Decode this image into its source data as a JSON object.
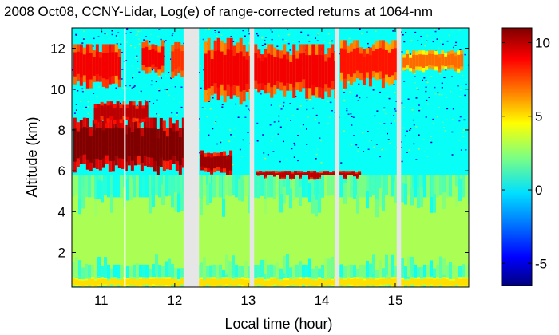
{
  "chart_data": {
    "type": "heatmap",
    "title": "2008 Oct08, CCNY-Lidar, Log(e) of range-corrected returns at 1064-nm",
    "xlabel": "Local time (hour)",
    "ylabel": "Altitude (km)",
    "xlim": [
      10.6,
      16.0
    ],
    "ylim": [
      0.3,
      13.0
    ],
    "x_ticks": [
      11,
      12,
      13,
      14,
      15
    ],
    "x_tick_labels": [
      "11",
      "12",
      "13",
      "14",
      "15"
    ],
    "y_ticks": [
      2,
      4,
      6,
      8,
      10,
      12
    ],
    "y_tick_labels": [
      "2",
      "4",
      "6",
      "8",
      "10",
      "12"
    ],
    "colorbar": {
      "range": [
        -6.5,
        11
      ],
      "ticks": [
        -5,
        0,
        5,
        10
      ],
      "tick_labels": [
        "-5",
        "0",
        "5",
        "10"
      ],
      "colormap": "jet"
    },
    "data_gaps_hours": [
      [
        12.12,
        12.33
      ],
      [
        13.02,
        13.08
      ],
      [
        14.18,
        14.24
      ],
      [
        15.02,
        15.08
      ]
    ],
    "features": [
      {
        "kind": "cirrus",
        "x": [
          10.62,
          11.25
        ],
        "y": [
          10.2,
          12.2
        ],
        "value": 7.5
      },
      {
        "kind": "cirrus",
        "x": [
          11.55,
          11.85
        ],
        "y": [
          10.8,
          12.4
        ],
        "value": 7.5
      },
      {
        "kind": "cirrus",
        "x": [
          11.95,
          12.12
        ],
        "y": [
          10.6,
          12.3
        ],
        "value": 6.5
      },
      {
        "kind": "thick-cloud",
        "x": [
          10.62,
          12.12
        ],
        "y": [
          6.1,
          8.6
        ],
        "value": 9.5
      },
      {
        "kind": "cloud-top",
        "x": [
          10.9,
          11.6
        ],
        "y": [
          8.4,
          9.4
        ],
        "value": 8.5
      },
      {
        "kind": "cirrus",
        "x": [
          12.4,
          13.02
        ],
        "y": [
          9.5,
          12.5
        ],
        "value": 7.5
      },
      {
        "kind": "thick-cloud",
        "x": [
          12.35,
          12.75
        ],
        "y": [
          5.9,
          7.0
        ],
        "value": 9.0
      },
      {
        "kind": "cirrus",
        "x": [
          13.08,
          14.18
        ],
        "y": [
          9.8,
          12.2
        ],
        "value": 7.5
      },
      {
        "kind": "thin-layer",
        "x": [
          13.1,
          14.5
        ],
        "y": [
          5.6,
          6.0
        ],
        "value": 8.5
      },
      {
        "kind": "cirrus",
        "x": [
          14.25,
          15.02
        ],
        "y": [
          10.3,
          12.4
        ],
        "value": 7.0
      },
      {
        "kind": "cirrus",
        "x": [
          15.1,
          15.9
        ],
        "y": [
          10.9,
          11.9
        ],
        "value": 5.5
      },
      {
        "kind": "boundary-layer",
        "x": [
          10.6,
          16.0
        ],
        "y": [
          0.3,
          5.8
        ],
        "value": 1.5
      },
      {
        "kind": "surface-layer",
        "x": [
          10.6,
          16.0
        ],
        "y": [
          0.3,
          0.8
        ],
        "value": 3.5
      }
    ]
  }
}
